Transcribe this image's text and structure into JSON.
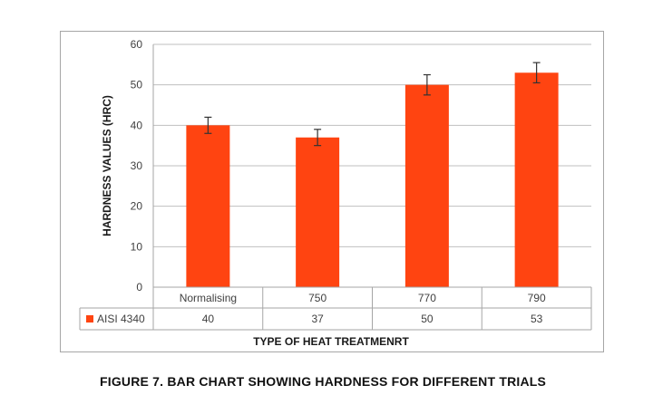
{
  "caption": "FIGURE 7. BAR CHART SHOWING HARDNESS FOR DIFFERENT TRIALS",
  "chart_data": {
    "type": "bar",
    "title": "",
    "xlabel": "TYPE OF HEAT TREATMENRT",
    "ylabel": "HARDNESS VALUES (HRC)",
    "categories": [
      "Normalising",
      "750",
      "770",
      "790"
    ],
    "series": [
      {
        "name": "AISI 4340",
        "values": [
          40,
          37,
          50,
          53
        ],
        "error": [
          2,
          2,
          2.5,
          2.5
        ],
        "color": "#ff4411"
      }
    ],
    "ylim": [
      0,
      60
    ],
    "yticks": [
      0,
      10,
      20,
      30,
      40,
      50,
      60
    ],
    "grid": true,
    "legend": "data-table",
    "data_table": {
      "legend_label": "AISI 4340",
      "values": [
        "40",
        "37",
        "50",
        "53"
      ]
    }
  }
}
